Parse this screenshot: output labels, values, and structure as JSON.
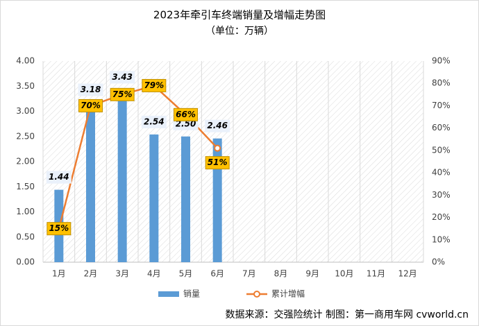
{
  "chart_data": {
    "type": "bar_line",
    "title": "2023年牵引车终端销量及增幅走势图",
    "subtitle": "（单位：万辆）",
    "source": "数据来源：交强险统计  制图：第一商用车网 cvworld.cn",
    "categories": [
      "1月",
      "2月",
      "3月",
      "4月",
      "5月",
      "6月",
      "7月",
      "8月",
      "9月",
      "10月",
      "11月",
      "12月"
    ],
    "series": [
      {
        "name": "销量",
        "type": "bar",
        "color": "#5b9bd5",
        "axis": "y",
        "values": [
          1.44,
          3.18,
          3.43,
          2.54,
          2.5,
          2.46,
          null,
          null,
          null,
          null,
          null,
          null
        ],
        "value_labels": [
          "1.44",
          "3.18",
          "3.43",
          "2.54",
          "2.50",
          "2.46",
          null,
          null,
          null,
          null,
          null,
          null
        ]
      },
      {
        "name": "累计增幅",
        "type": "line",
        "color": "#ed7d31",
        "axis": "y2",
        "values": [
          15,
          70,
          75,
          79,
          66,
          51,
          null,
          null,
          null,
          null,
          null,
          null
        ],
        "value_labels": [
          "15%",
          "70%",
          "75%",
          "79%",
          "66%",
          "51%",
          null,
          null,
          null,
          null,
          null,
          null
        ]
      }
    ],
    "ylim": [
      0,
      4
    ],
    "yticks": [
      {
        "value": 0,
        "label": "0.00"
      },
      {
        "value": 0.5,
        "label": "0.50"
      },
      {
        "value": 1,
        "label": "1.00"
      },
      {
        "value": 1.5,
        "label": "1.50"
      },
      {
        "value": 2,
        "label": "2.00"
      },
      {
        "value": 2.5,
        "label": "2.50"
      },
      {
        "value": 3,
        "label": "3.00"
      },
      {
        "value": 3.5,
        "label": "3.50"
      },
      {
        "value": 4,
        "label": "4.00"
      }
    ],
    "y2lim": [
      0,
      90
    ],
    "y2ticks": [
      {
        "value": 0,
        "label": "0%"
      },
      {
        "value": 10,
        "label": "10%"
      },
      {
        "value": 20,
        "label": "20%"
      },
      {
        "value": 30,
        "label": "30%"
      },
      {
        "value": 40,
        "label": "40%"
      },
      {
        "value": 50,
        "label": "50%"
      },
      {
        "value": 60,
        "label": "60%"
      },
      {
        "value": 70,
        "label": "70%"
      },
      {
        "value": 80,
        "label": "80%"
      },
      {
        "value": 90,
        "label": "90%"
      }
    ],
    "legend": "bottom"
  }
}
